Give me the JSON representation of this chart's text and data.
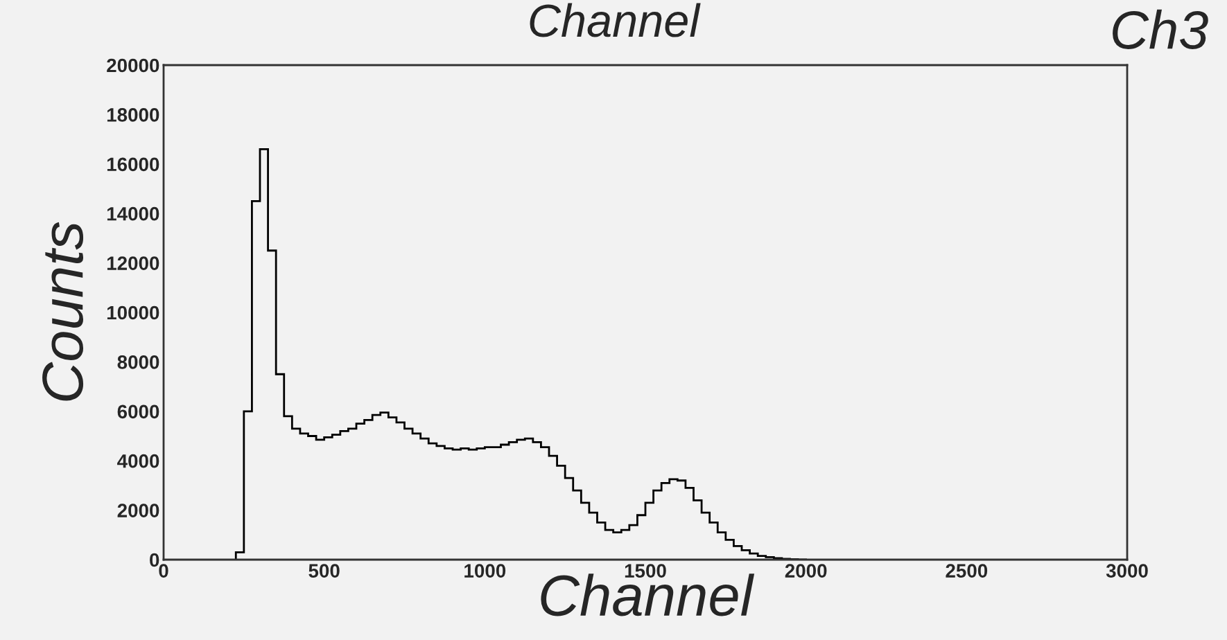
{
  "chart_data": {
    "type": "histogram",
    "title": "Channel",
    "xlabel": "Channel",
    "ylabel": "Counts",
    "annotations": [
      "Ch3"
    ],
    "bins": [
      225,
      250,
      275,
      300,
      325,
      350,
      375,
      400,
      425,
      450,
      475,
      500,
      525,
      550,
      575,
      600,
      625,
      650,
      675,
      700,
      725,
      750,
      775,
      800,
      825,
      850,
      875,
      900,
      925,
      950,
      975,
      1000,
      1025,
      1050,
      1075,
      1100,
      1125,
      1150,
      1175,
      1200,
      1225,
      1250,
      1275,
      1300,
      1325,
      1350,
      1375,
      1400,
      1425,
      1450,
      1475,
      1500,
      1525,
      1550,
      1575,
      1600,
      1625,
      1650,
      1675,
      1700,
      1725,
      1750,
      1775,
      1800,
      1825,
      1850,
      1875,
      1900,
      1925,
      1950,
      1975,
      2000
    ],
    "values": [
      300,
      6000,
      14500,
      16600,
      12500,
      7500,
      5800,
      5300,
      5100,
      5000,
      4850,
      4950,
      5050,
      5200,
      5300,
      5500,
      5650,
      5850,
      5950,
      5750,
      5550,
      5300,
      5100,
      4900,
      4700,
      4600,
      4500,
      4450,
      4500,
      4450,
      4500,
      4550,
      4550,
      4650,
      4750,
      4850,
      4900,
      4750,
      4550,
      4200,
      3800,
      3300,
      2800,
      2300,
      1900,
      1500,
      1200,
      1100,
      1200,
      1400,
      1800,
      2300,
      2800,
      3100,
      3250,
      3200,
      2900,
      2400,
      1900,
      1500,
      1100,
      800,
      550,
      380,
      250,
      150,
      100,
      60,
      30,
      15,
      5
    ],
    "color": "#000000",
    "xlim": [
      0,
      3000
    ],
    "xticks": [
      0,
      500,
      1000,
      1500,
      2000,
      2500,
      3000
    ],
    "ylim": [
      0,
      20000
    ],
    "yticks": [
      0,
      2000,
      4000,
      6000,
      8000,
      10000,
      12000,
      14000,
      16000,
      18000,
      20000
    ],
    "grid": false,
    "legend": false
  }
}
